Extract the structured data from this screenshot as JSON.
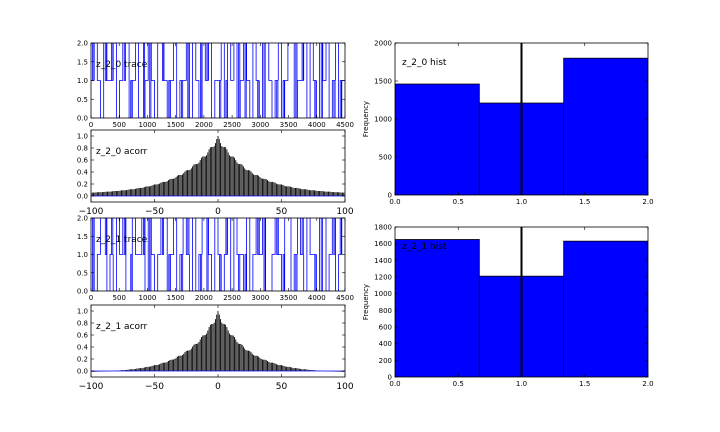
{
  "chart_data": [
    {
      "id": "z20trace",
      "type": "line",
      "title": "z_2_0 trace",
      "x_ticks": [
        0,
        500,
        1000,
        1500,
        2000,
        2500,
        3000,
        3500,
        4000,
        4500
      ],
      "y_ticks": [
        "0.0",
        "0.5",
        "1.0",
        "1.5",
        "2.0"
      ],
      "xlim": [
        0,
        4500
      ],
      "ylim": [
        0,
        2
      ],
      "series": [
        {
          "color": "#0000ff",
          "values_are": "discrete states 0/1/2 over 4500 iterations"
        }
      ],
      "states": [
        1,
        2,
        1,
        0,
        2,
        1,
        1,
        2,
        0,
        1,
        2,
        2,
        0,
        1,
        2,
        0,
        0,
        1,
        2,
        1,
        0,
        2,
        2,
        1,
        0,
        1,
        2,
        0,
        1,
        1,
        2,
        0,
        2,
        1,
        0,
        2,
        1,
        2,
        0,
        1,
        1,
        2,
        0,
        2,
        1,
        2,
        0,
        1,
        2,
        1,
        0,
        2,
        1,
        0,
        2,
        2,
        1,
        0,
        1,
        2,
        0,
        1,
        2,
        2,
        0,
        1,
        1,
        2,
        0,
        2,
        1,
        0,
        2,
        1,
        2,
        0,
        1,
        2,
        0,
        1
      ]
    },
    {
      "id": "z20acorr",
      "type": "bar",
      "title": "z_2_0 acorr",
      "x_ticks": [
        "−100",
        "−50",
        "0",
        "50",
        "100"
      ],
      "y_ticks": [
        "0.0",
        "0.2",
        "0.4",
        "0.6",
        "0.8",
        "1.0"
      ],
      "xlim": [
        -100,
        100
      ],
      "ylim": [
        -0.1,
        1.1
      ],
      "lags_range": [
        -100,
        100
      ],
      "peak": 1.0,
      "decay_scale": 28,
      "tail_floor": 0.03,
      "sign": 1
    },
    {
      "id": "z21trace",
      "type": "line",
      "title": "z_2_1 trace",
      "x_ticks": [
        0,
        500,
        1000,
        1500,
        2000,
        2500,
        3000,
        3500,
        4000,
        4500
      ],
      "y_ticks": [
        "0.0",
        "0.5",
        "1.0",
        "1.5",
        "2.0"
      ],
      "xlim": [
        0,
        4500
      ],
      "ylim": [
        0,
        2
      ],
      "series": [
        {
          "color": "#0000ff",
          "values_are": "discrete states 0/1/2 over 4500 iterations"
        }
      ],
      "states": [
        2,
        0,
        1,
        2,
        2,
        0,
        1,
        0,
        2,
        1,
        2,
        0,
        0,
        2,
        1,
        1,
        2,
        0,
        2,
        1,
        0,
        1,
        2,
        2,
        0,
        1,
        2,
        0,
        1,
        2,
        1,
        0,
        2,
        0,
        1,
        2,
        2,
        1,
        0,
        2,
        1,
        0,
        1,
        2,
        0,
        2,
        1,
        1,
        0,
        2,
        0,
        1,
        2,
        1,
        2,
        0,
        0,
        1,
        2,
        1,
        0,
        2,
        2,
        0,
        1,
        2,
        1,
        0,
        2,
        1,
        1,
        0,
        2,
        2,
        0,
        1,
        2,
        0,
        1,
        2
      ]
    },
    {
      "id": "z21acorr",
      "type": "bar",
      "title": "z_2_1 acorr",
      "x_ticks": [
        "−100",
        "−50",
        "0",
        "50",
        "100"
      ],
      "y_ticks": [
        "0.0",
        "0.2",
        "0.4",
        "0.6",
        "0.8",
        "1.0"
      ],
      "xlim": [
        -100,
        100
      ],
      "ylim": [
        -0.1,
        1.1
      ],
      "lags_range": [
        -100,
        100
      ],
      "peak": 1.0,
      "decay_scale": 24,
      "tail_floor": -0.03,
      "sign": 1
    },
    {
      "id": "z20hist",
      "type": "bar",
      "title": "z_2_0 hist",
      "ylabel": "Frequency",
      "x_ticks": [
        "0.0",
        "0.5",
        "1.0",
        "1.5",
        "2.0"
      ],
      "y_ticks": [
        "0",
        "500",
        "1000",
        "1500",
        "2000"
      ],
      "xlim": [
        0,
        2
      ],
      "ylim": [
        0,
        2000
      ],
      "bins": [
        {
          "from": 0.0,
          "to": 0.6667,
          "value": 1460
        },
        {
          "from": 0.6667,
          "to": 1.3333,
          "value": 1210
        },
        {
          "from": 1.3333,
          "to": 2.0,
          "value": 1800
        }
      ],
      "vline": 1.0,
      "bar_color": "#0000ff"
    },
    {
      "id": "z21hist",
      "type": "bar",
      "title": "z_2_1 hist",
      "ylabel": "Frequency",
      "x_ticks": [
        "0.0",
        "0.5",
        "1.0",
        "1.5",
        "2.0"
      ],
      "y_ticks": [
        "0",
        "200",
        "400",
        "600",
        "800",
        "1000",
        "1200",
        "1400",
        "1600",
        "1800"
      ],
      "xlim": [
        0,
        2
      ],
      "ylim": [
        0,
        1800
      ],
      "bins": [
        {
          "from": 0.0,
          "to": 0.6667,
          "value": 1650
        },
        {
          "from": 0.6667,
          "to": 1.3333,
          "value": 1210
        },
        {
          "from": 1.3333,
          "to": 2.0,
          "value": 1630
        }
      ],
      "vline": 1.0,
      "bar_color": "#0000ff"
    }
  ]
}
